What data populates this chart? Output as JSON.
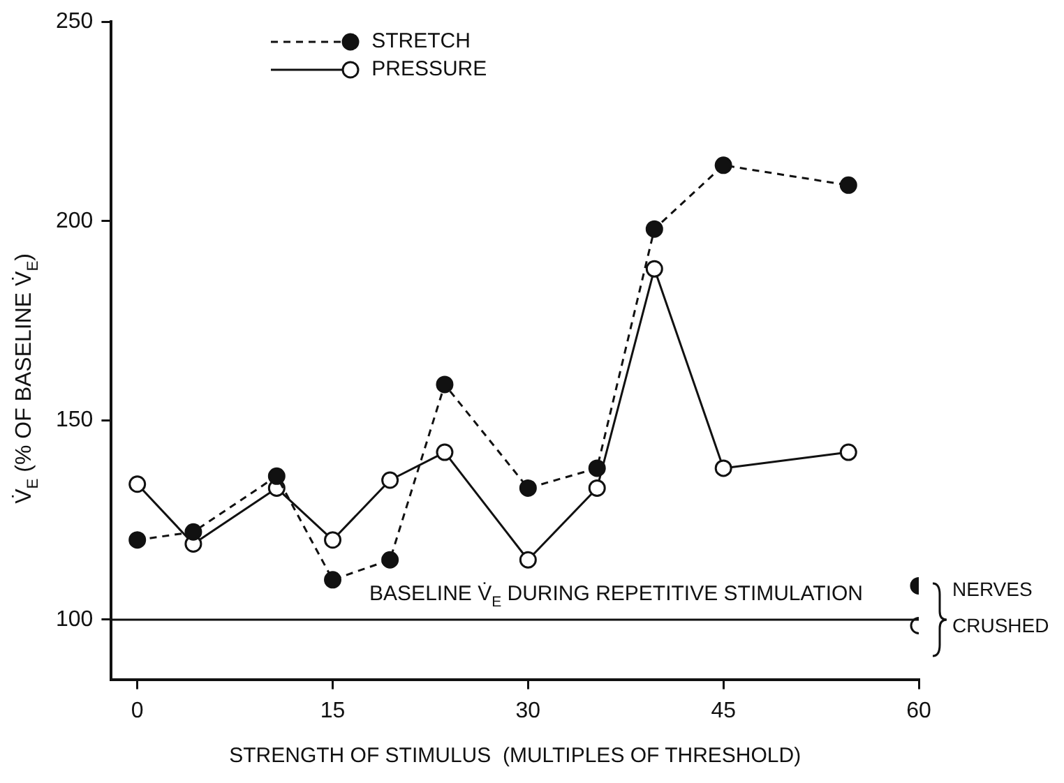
{
  "chart_data": {
    "type": "line",
    "xlabel": "STRENGTH OF STIMULUS  (MULTIPLES OF THRESHOLD)",
    "ylabel": "V̇$_{E}$ (% OF BASELINE V̇$_{E}$)",
    "xlim": [
      -2,
      60
    ],
    "xticks": [
      0,
      15,
      30,
      45,
      60
    ],
    "ylim": [
      85,
      250
    ],
    "yticks": [
      100,
      150,
      200,
      250
    ],
    "grid": false,
    "legend": "top left",
    "marker": "circle",
    "series": [
      {
        "name": "STRETCH",
        "type": "line",
        "line_style": "dashed",
        "color": "#111111",
        "x": [
          0,
          4.3,
          10.7,
          15,
          19.4,
          23.6,
          30,
          35.3,
          39.7,
          45,
          54.6
        ],
        "values": [
          120,
          122,
          136,
          110,
          115,
          159,
          133,
          138,
          198,
          214,
          209
        ]
      },
      {
        "name": "PRESSURE",
        "type": "line",
        "line_style": "solid",
        "color": "#111111",
        "colors": [
          "#ffffff",
          "#ffffff",
          "#ffffff",
          "#ffffff",
          "#ffffff",
          "#ffffff",
          "#ffffff",
          "#ffffff",
          "#ffffff",
          "#ffffff",
          "#ffffff"
        ],
        "x": [
          0,
          4.3,
          10.7,
          15,
          19.4,
          23.6,
          30,
          35.3,
          39.7,
          45,
          54.6
        ],
        "values": [
          134,
          119,
          133,
          120,
          135,
          142,
          115,
          133,
          188,
          138,
          142
        ]
      },
      {
        "type": "scatter",
        "color": "#111111",
        "x": [
          60
        ],
        "values": [
          108.5
        ]
      },
      {
        "type": "scatter",
        "color": "#111111",
        "colors": [
          "#ffffff"
        ],
        "x": [
          60
        ],
        "values": [
          98.5
        ]
      }
    ],
    "ref_lines": [
      {
        "axis": "y",
        "value": 100,
        "label": "BASELINE V̇$_{E}$ DURING REPETITIVE STIMULATION",
        "color": "#111111"
      }
    ],
    "annotations": [
      {
        "text": "NERVES CRUSHED",
        "x": 60,
        "y": 100
      }
    ]
  }
}
